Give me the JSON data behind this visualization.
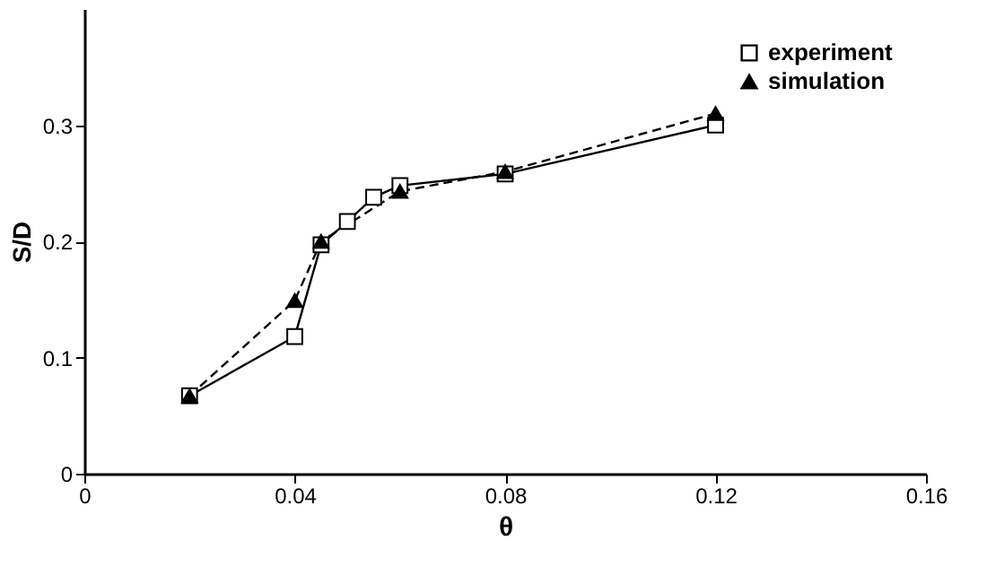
{
  "chart_data": {
    "type": "line",
    "xlabel": "θ",
    "ylabel": "S/D",
    "xlim": [
      0,
      0.16
    ],
    "ylim": [
      0,
      0.4
    ],
    "xticks": [
      0,
      0.04,
      0.08,
      0.12,
      0.16
    ],
    "yticks": [
      0,
      0.1,
      0.2,
      0.3
    ],
    "grid": false,
    "legend": "top right",
    "series": [
      {
        "name": "experiment",
        "color": "#000000",
        "marker": "square",
        "line_style": "solid",
        "x": [
          0.02,
          0.04,
          0.045,
          0.05,
          0.055,
          0.06,
          0.08,
          0.12
        ],
        "values": [
          0.067,
          0.118,
          0.197,
          0.217,
          0.238,
          0.248,
          0.258,
          0.3
        ]
      },
      {
        "name": "simulation",
        "color": "#000000",
        "marker": "triangle",
        "line_style": "dashed",
        "x": [
          0.02,
          0.04,
          0.045,
          0.06,
          0.08,
          0.12
        ],
        "values": [
          0.067,
          0.149,
          0.2,
          0.243,
          0.26,
          0.31
        ]
      }
    ]
  }
}
